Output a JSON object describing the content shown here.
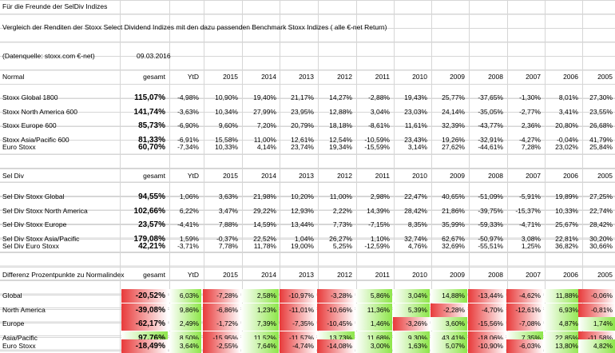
{
  "sheet": {
    "title": "Für die Freunde der SelDiv Indizes",
    "subtitle": "Vergleich der Renditen der Stoxx Select Dividend Indizes mit den dazu passenden Benchmark Stoxx Indizes ( alle €-net Return)",
    "source_label": "(Datenquelle: stoxx.com €-net)",
    "source_date": "09.03.2016"
  },
  "normal": {
    "section": "Normal",
    "headers": [
      "gesamt",
      "YtD",
      "2015",
      "2014",
      "2013",
      "2012",
      "2011",
      "2010",
      "2009",
      "2008",
      "2007",
      "2006",
      "2005"
    ],
    "rows": [
      {
        "label": "Stoxx Global 1800",
        "vals": [
          "115,07%",
          "-4,98%",
          "10,90%",
          "19,40%",
          "21,17%",
          "14,27%",
          "-2,88%",
          "19,43%",
          "25,77%",
          "-37,65%",
          "-1,30%",
          "8,01%",
          "27,30%"
        ]
      },
      {
        "label": "Stoxx North America 600",
        "vals": [
          "141,74%",
          "-3,63%",
          "10,34%",
          "27,99%",
          "23,95%",
          "12,88%",
          "3,04%",
          "23,03%",
          "24,14%",
          "-35,05%",
          "-2,77%",
          "3,41%",
          "23,55%"
        ]
      },
      {
        "label": "Stoxx Europe 600",
        "vals": [
          "85,73%",
          "-6,90%",
          "9,60%",
          "7,20%",
          "20,79%",
          "18,18%",
          "-8,61%",
          "11,61%",
          "32,39%",
          "-43,77%",
          "2,36%",
          "20,80%",
          "26,68%"
        ]
      },
      {
        "label": "Stoxx Asia/Pacific 600",
        "vals": [
          "81,33%",
          "-6,91%",
          "15,58%",
          "11,00%",
          "12,61%",
          "12,54%",
          "-10,59%",
          "23,43%",
          "19,26%",
          "-32,91%",
          "-4,27%",
          "-0,04%",
          "41,79%"
        ]
      }
    ],
    "euro": {
      "label": "Euro Stoxx",
      "vals": [
        "60,70%",
        "-7,34%",
        "10,33%",
        "4,14%",
        "23,74%",
        "19,34%",
        "-15,59%",
        "3,14%",
        "27,62%",
        "-44,61%",
        "7,28%",
        "23,02%",
        "25,84%"
      ]
    }
  },
  "seldiv": {
    "section": "Sel Div",
    "headers": [
      "gesamt",
      "YtD",
      "2015",
      "2014",
      "2013",
      "2012",
      "2011",
      "2010",
      "2009",
      "2008",
      "2007",
      "2006",
      "2005"
    ],
    "rows": [
      {
        "label": "Sel Div Stoxx Global",
        "vals": [
          "94,55%",
          "1,06%",
          "3,63%",
          "21,98%",
          "10,20%",
          "11,00%",
          "2,98%",
          "22,47%",
          "40,65%",
          "-51,09%",
          "-5,91%",
          "19,89%",
          "27,25%"
        ]
      },
      {
        "label": "Sel Div Stoxx North America",
        "vals": [
          "102,66%",
          "6,22%",
          "3,47%",
          "29,22%",
          "12,93%",
          "2,22%",
          "14,39%",
          "28,42%",
          "21,86%",
          "-39,75%",
          "-15,37%",
          "10,33%",
          "22,74%"
        ]
      },
      {
        "label": "Sel Div Stoxx Europe",
        "vals": [
          "23,57%",
          "-4,41%",
          "7,88%",
          "14,59%",
          "13,44%",
          "7,73%",
          "-7,15%",
          "8,35%",
          "35,99%",
          "-59,33%",
          "-4,71%",
          "25,67%",
          "28,42%"
        ]
      },
      {
        "label": "Sel Div Stoxx Asia/Pacific",
        "vals": [
          "179,08%",
          "1,59%",
          "-0,37%",
          "22,52%",
          "1,04%",
          "26,27%",
          "1,10%",
          "32,74%",
          "62,67%",
          "-50,97%",
          "3,08%",
          "22,81%",
          "30,20%"
        ]
      }
    ],
    "euro": {
      "label": "Sel Div Euro Stoxx",
      "vals": [
        "42,21%",
        "-3,71%",
        "7,78%",
        "11,78%",
        "19,00%",
        "5,25%",
        "-12,59%",
        "4,76%",
        "32,69%",
        "-55,51%",
        "1,25%",
        "36,82%",
        "30,66%"
      ]
    }
  },
  "diff": {
    "section": "Differenz Prozentpunkte zu Normalindex",
    "headers": [
      "gesamt",
      "YtD",
      "2015",
      "2014",
      "2013",
      "2012",
      "2011",
      "2010",
      "2009",
      "2008",
      "2007",
      "2006",
      "2005"
    ],
    "rows": [
      {
        "label": "Global",
        "vals": [
          "-20,52%",
          "6,03%",
          "-7,28%",
          "2,58%",
          "-10,97%",
          "-3,28%",
          "5,86%",
          "3,04%",
          "14,88%",
          "-13,44%",
          "-4,62%",
          "11,88%",
          "-0,06%"
        ]
      },
      {
        "label": "North America",
        "vals": [
          "-39,08%",
          "9,86%",
          "-6,86%",
          "1,23%",
          "-11,01%",
          "-10,66%",
          "11,36%",
          "5,39%",
          "-2,28%",
          "-4,70%",
          "-12,61%",
          "6,93%",
          "-0,81%"
        ]
      },
      {
        "label": "Europe",
        "vals": [
          "-62,17%",
          "2,49%",
          "-1,72%",
          "7,39%",
          "-7,35%",
          "-10,45%",
          "1,46%",
          "-3,26%",
          "3,60%",
          "-15,56%",
          "-7,08%",
          "4,87%",
          "1,74%"
        ]
      },
      {
        "label": "Asia/Pacific",
        "vals": [
          "97,76%",
          "8,50%",
          "-15,95%",
          "11,52%",
          "-11,57%",
          "13,73%",
          "11,68%",
          "9,30%",
          "43,41%",
          "-18,06%",
          "7,35%",
          "22,85%",
          "-11,58%"
        ]
      }
    ],
    "euro": {
      "label": "Euro Stoxx",
      "vals": [
        "-18,49%",
        "3,64%",
        "-2,55%",
        "7,64%",
        "-4,74%",
        "-14,08%",
        "3,00%",
        "1,63%",
        "5,07%",
        "-10,90%",
        "-6,03%",
        "13,80%",
        "4,82%"
      ]
    }
  }
}
